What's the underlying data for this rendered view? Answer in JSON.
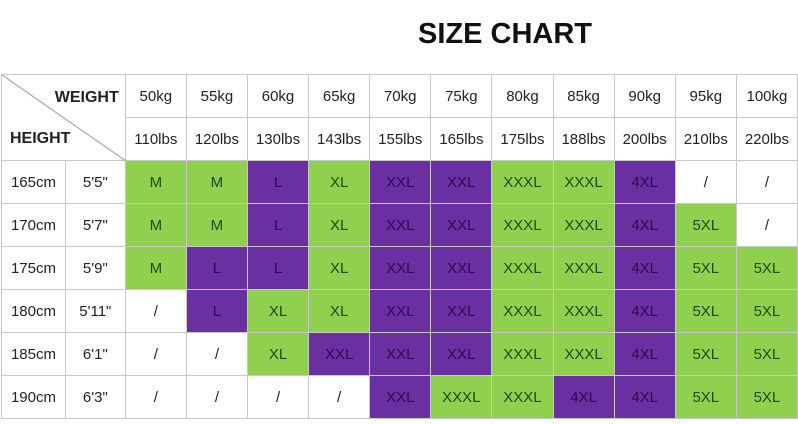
{
  "title": "SIZE CHART",
  "header": {
    "weight_label": "WEIGHT",
    "height_label": "HEIGHT",
    "kg": [
      "50kg",
      "55kg",
      "60kg",
      "65kg",
      "70kg",
      "75kg",
      "80kg",
      "85kg",
      "90kg",
      "95kg",
      "100kg"
    ],
    "lbs": [
      "110lbs",
      "120lbs",
      "130lbs",
      "143lbs",
      "155lbs",
      "165lbs",
      "175lbs",
      "188lbs",
      "200lbs",
      "210lbs",
      "220lbs"
    ]
  },
  "colors": {
    "g": "#8fd14f",
    "p": "#6a2fa0",
    "w": "#ffffff"
  },
  "rows": [
    {
      "cm": "165cm",
      "ft": "5'5\"",
      "sizes": [
        "M",
        "M",
        "L",
        "XL",
        "XXL",
        "XXL",
        "XXXL",
        "XXXL",
        "4XL",
        "/",
        "/"
      ],
      "fill": [
        "g",
        "g",
        "p",
        "g",
        "p",
        "p",
        "g",
        "g",
        "p",
        "w",
        "w"
      ]
    },
    {
      "cm": "170cm",
      "ft": "5'7\"",
      "sizes": [
        "M",
        "M",
        "L",
        "XL",
        "XXL",
        "XXL",
        "XXXL",
        "XXXL",
        "4XL",
        "5XL",
        "/"
      ],
      "fill": [
        "g",
        "g",
        "p",
        "g",
        "p",
        "p",
        "g",
        "g",
        "p",
        "g",
        "w"
      ]
    },
    {
      "cm": "175cm",
      "ft": "5'9\"",
      "sizes": [
        "M",
        "L",
        "L",
        "XL",
        "XXL",
        "XXL",
        "XXXL",
        "XXXL",
        "4XL",
        "5XL",
        "5XL"
      ],
      "fill": [
        "g",
        "p",
        "p",
        "g",
        "p",
        "p",
        "g",
        "g",
        "p",
        "g",
        "g"
      ]
    },
    {
      "cm": "180cm",
      "ft": "5'11\"",
      "sizes": [
        "/",
        "L",
        "XL",
        "XL",
        "XXL",
        "XXL",
        "XXXL",
        "XXXL",
        "4XL",
        "5XL",
        "5XL"
      ],
      "fill": [
        "w",
        "p",
        "g",
        "g",
        "p",
        "p",
        "g",
        "g",
        "p",
        "g",
        "g"
      ]
    },
    {
      "cm": "185cm",
      "ft": "6'1\"",
      "sizes": [
        "/",
        "/",
        "XL",
        "XXL",
        "XXL",
        "XXL",
        "XXXL",
        "XXXL",
        "4XL",
        "5XL",
        "5XL"
      ],
      "fill": [
        "w",
        "w",
        "g",
        "p",
        "p",
        "p",
        "g",
        "g",
        "p",
        "g",
        "g"
      ]
    },
    {
      "cm": "190cm",
      "ft": "6'3\"",
      "sizes": [
        "/",
        "/",
        "/",
        "/",
        "XXL",
        "XXXL",
        "XXXL",
        "4XL",
        "4XL",
        "5XL",
        "5XL"
      ],
      "fill": [
        "w",
        "w",
        "w",
        "w",
        "p",
        "g",
        "g",
        "p",
        "p",
        "g",
        "g"
      ]
    }
  ]
}
